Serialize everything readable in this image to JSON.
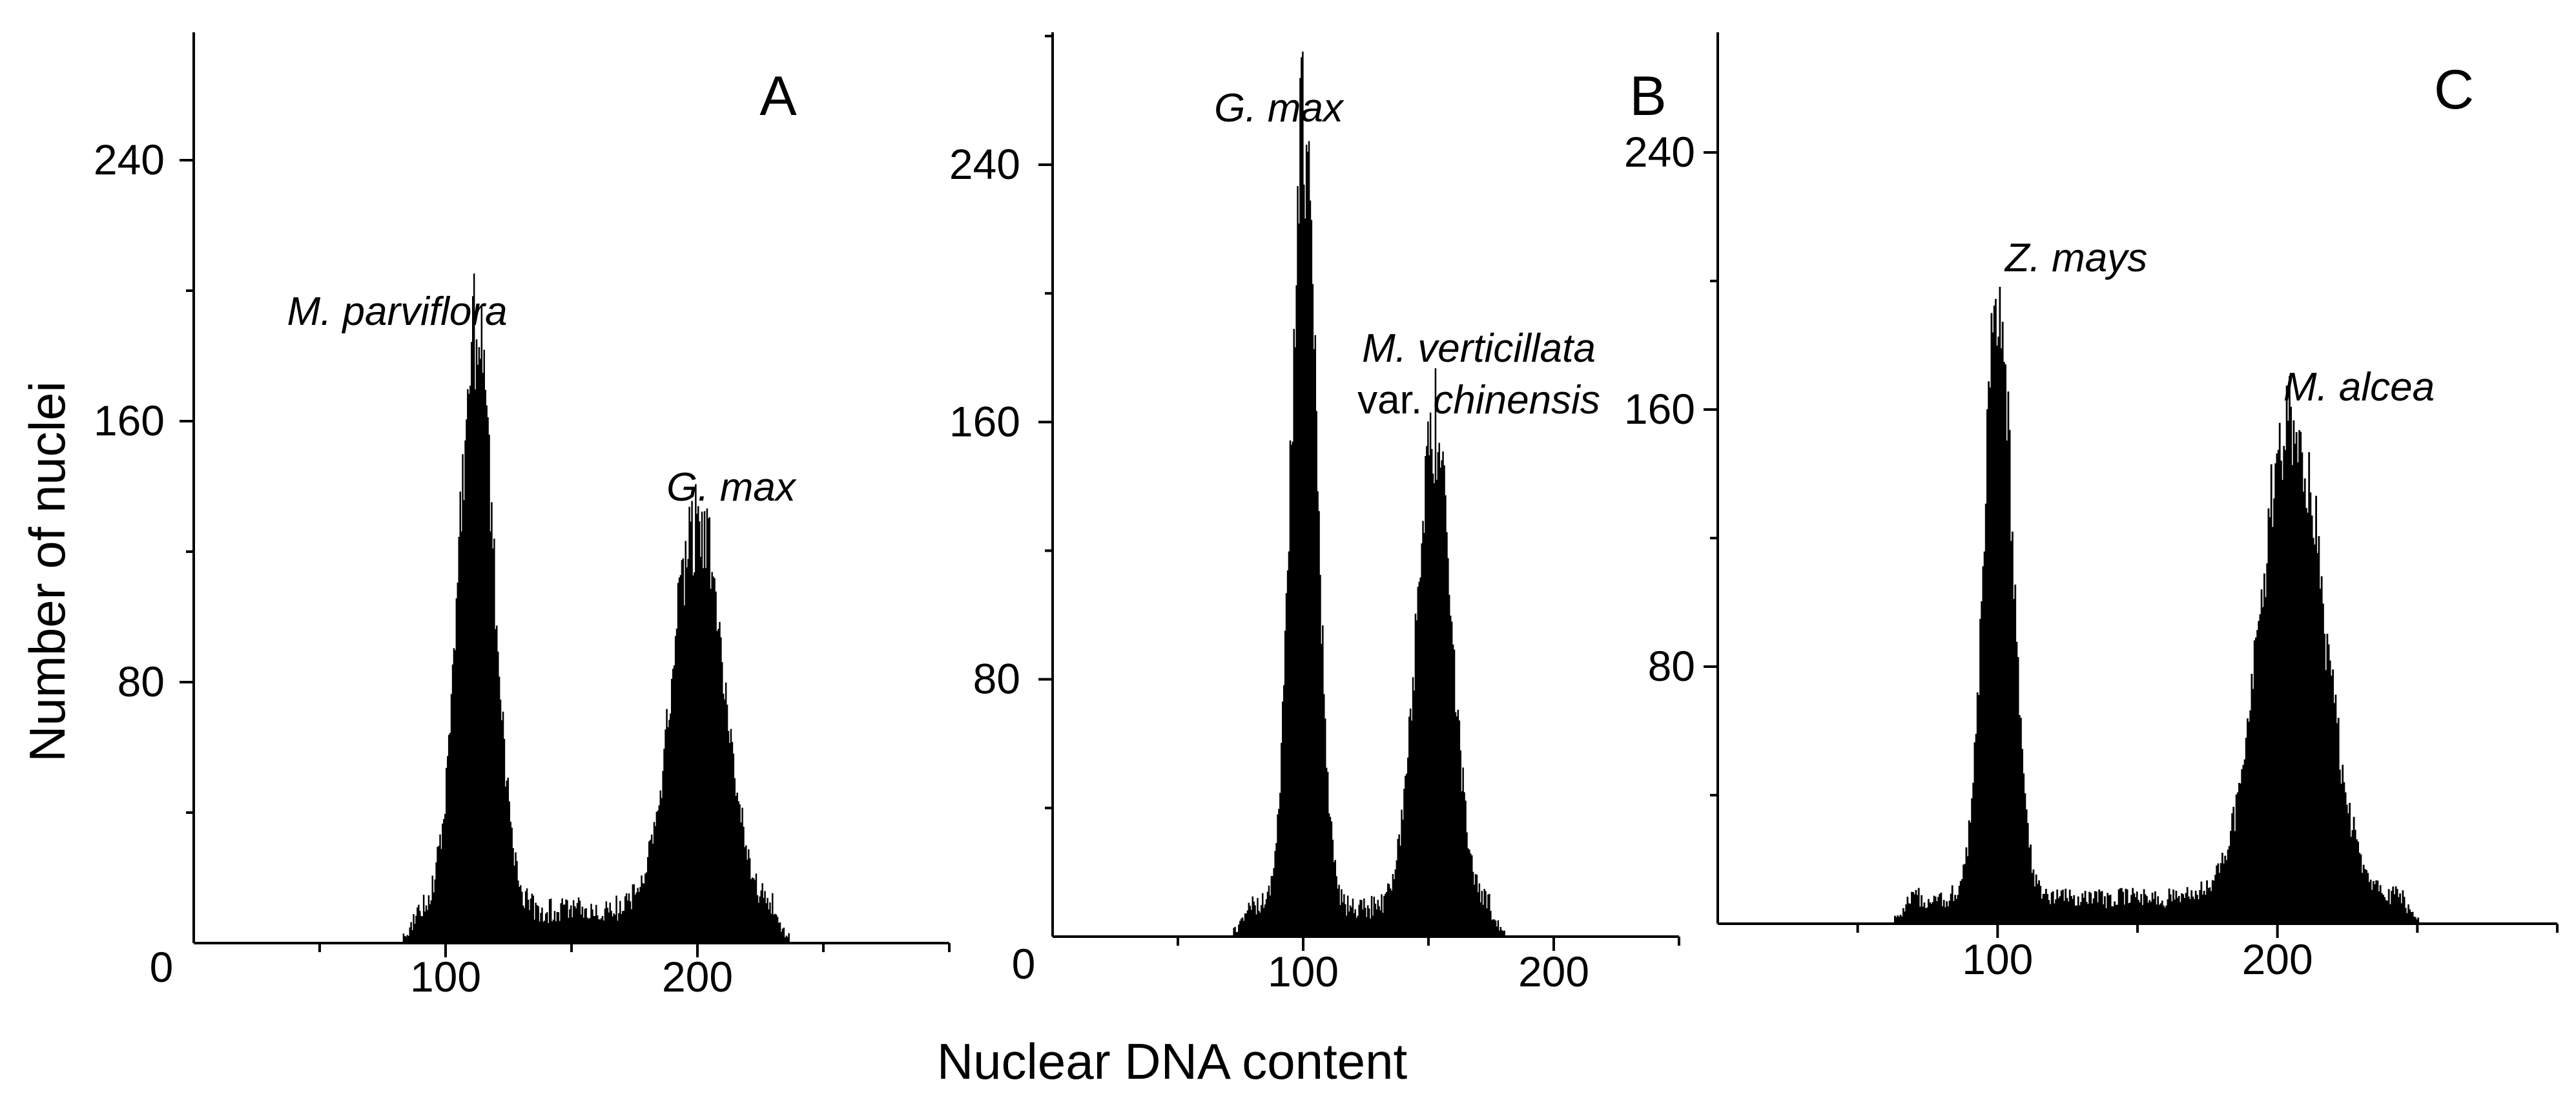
{
  "chart_data": [
    {
      "type": "bar",
      "panel": "A",
      "xlim": [
        0,
        300
      ],
      "ylim": [
        0,
        280
      ],
      "x_ticks": [
        100,
        200
      ],
      "y_ticks": [
        80,
        160,
        240
      ],
      "origin_label": "0",
      "labels": [
        "M. parviflora",
        "G. max"
      ],
      "series": [
        {
          "name": "M. parviflora",
          "peak_x": 112,
          "peak_y": 175,
          "sd": 7
        },
        {
          "name": "G. max",
          "peak_x": 200,
          "peak_y": 120,
          "sd": 10
        }
      ],
      "background_level": 10,
      "range": [
        83,
        236
      ]
    },
    {
      "type": "bar",
      "panel": "B",
      "xlim": [
        0,
        250
      ],
      "ylim": [
        0,
        280
      ],
      "x_ticks": [
        100,
        200
      ],
      "y_ticks": [
        80,
        160,
        240
      ],
      "origin_label": "0",
      "labels": [
        "G. max",
        "M. verticillata var. chinensis"
      ],
      "series": [
        {
          "name": "G. max",
          "peak_x": 100,
          "peak_y": 243,
          "sd": 5
        },
        {
          "name": "M. verticillata var. chinensis",
          "peak_x": 152,
          "peak_y": 148,
          "sd": 7
        }
      ],
      "background_level": 9,
      "range": [
        72,
        180
      ]
    },
    {
      "type": "bar",
      "panel": "C",
      "xlim": [
        0,
        300
      ],
      "ylim": [
        0,
        280
      ],
      "x_ticks": [
        100,
        200
      ],
      "y_ticks": [
        80,
        160,
        240
      ],
      "labels": [
        "Z. mays",
        "M. alcea"
      ],
      "series": [
        {
          "name": "Z. mays",
          "peak_x": 100,
          "peak_y": 190,
          "sd": 5
        },
        {
          "name": "M. alcea",
          "peak_x": 205,
          "peak_y": 150,
          "sd": 11
        }
      ],
      "background_level": 8,
      "range": [
        63,
        250
      ]
    }
  ],
  "labels": {
    "panels": [
      "A",
      "B",
      "C"
    ],
    "peaks": {
      "A": [
        "M. parviflora",
        "G. max"
      ],
      "B_first": "G. max",
      "B_second_line1_italic": "M. verticillata",
      "B_second_line2_prefix": "var. ",
      "B_second_line2_italic": "chinensis",
      "C": [
        "Z. mays",
        "M. alcea"
      ]
    },
    "ylabel": "Number of nuclei",
    "xlabel": "Nuclear DNA content"
  }
}
